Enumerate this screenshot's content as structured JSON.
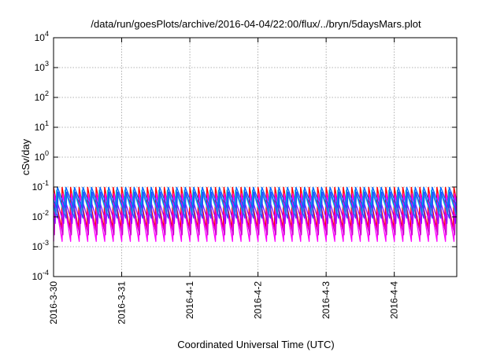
{
  "chart_data": {
    "type": "line",
    "title": "/data/run/goesPlots/archive/2016-04-04/22:00/flux/../bryn/5daysMars.plot",
    "xlabel": "Coordinated Universal Time (UTC)",
    "ylabel": "cSv/day",
    "yscale": "log",
    "ylim": [
      0.0001,
      10000
    ],
    "xlim": [
      "2016-03-30",
      "2016-04-04 22:00"
    ],
    "grid": true,
    "y_ticks": [
      {
        "base": "10",
        "exp": "-4"
      },
      {
        "base": "10",
        "exp": "-3"
      },
      {
        "base": "10",
        "exp": "-2"
      },
      {
        "base": "10",
        "exp": "-1"
      },
      {
        "base": "10",
        "exp": "0"
      },
      {
        "base": "10",
        "exp": "1"
      },
      {
        "base": "10",
        "exp": "2"
      },
      {
        "base": "10",
        "exp": "3"
      },
      {
        "base": "10",
        "exp": "4"
      }
    ],
    "x_ticks": [
      "2016-3-30",
      "2016-3-31",
      "2016-4-1",
      "2016-4-2",
      "2016-4-3",
      "2016-4-4"
    ],
    "sawtooth_period_hours": 3,
    "series": [
      {
        "color": "#ff0000",
        "peak": 0.1,
        "trough": 0.004
      },
      {
        "color": "#ff00ff",
        "peak": 0.06,
        "trough": 0.0015
      },
      {
        "color": "#cc00cc",
        "peak": 0.03,
        "trough": 0.0025
      },
      {
        "color": "#9900ff",
        "peak": 0.045,
        "trough": 0.006
      },
      {
        "color": "#00cccc",
        "peak": 0.08,
        "trough": 0.012
      },
      {
        "color": "#0066ff",
        "peak": 0.1,
        "trough": 0.02
      },
      {
        "color": "#2f4fff",
        "peak": 0.07,
        "trough": 0.009
      }
    ]
  }
}
